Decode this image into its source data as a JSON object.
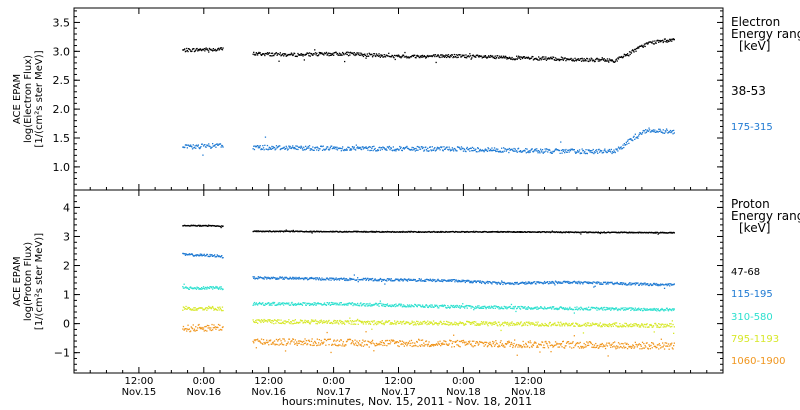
{
  "chart_data": [
    {
      "type": "scatter",
      "panel": "electron",
      "ylabel": [
        "ACE EPAM",
        "log(Electron Flux)",
        "[1/(cm²s ster MeV)]"
      ],
      "ylim": [
        0.6,
        3.75
      ],
      "yticks": [
        1.0,
        1.5,
        2.0,
        2.5,
        3.0,
        3.5
      ],
      "ytick_labels": [
        "1.0",
        "1.5",
        "2.0",
        "2.5",
        "3.0",
        "3.5"
      ],
      "legend_title": [
        "Electron",
        "Energy ranges",
        "[keV]"
      ],
      "segments": [
        [
          20,
          27.5
        ],
        [
          33,
          111
        ]
      ],
      "series": [
        {
          "name": "38-53",
          "color": "#000000",
          "noise": 0.03,
          "knots_x": [
            20,
            27,
            33,
            40,
            50,
            60,
            70,
            80,
            90,
            100,
            104,
            106,
            111
          ],
          "knots_y": [
            3.03,
            3.05,
            2.97,
            2.95,
            2.97,
            2.92,
            2.93,
            2.9,
            2.88,
            2.85,
            3.05,
            3.15,
            3.22
          ]
        },
        {
          "name": "175-315",
          "color": "#1f7ad3",
          "noise": 0.04,
          "knots_x": [
            20,
            27,
            33,
            50,
            70,
            90,
            100,
            104,
            106,
            111
          ],
          "knots_y": [
            1.35,
            1.38,
            1.35,
            1.33,
            1.32,
            1.28,
            1.28,
            1.55,
            1.65,
            1.62
          ]
        }
      ]
    },
    {
      "type": "scatter",
      "panel": "proton",
      "ylabel": [
        "ACE EPAM",
        "log(Proton Flux)",
        "[1/(cm²s ster MeV)]"
      ],
      "ylim": [
        -1.7,
        4.6
      ],
      "yticks": [
        -1,
        0,
        1,
        2,
        3,
        4
      ],
      "ytick_labels": [
        "−1",
        "0",
        "1",
        "2",
        "3",
        "4"
      ],
      "legend_title": [
        "Proton",
        "Energy ranges",
        "[keV]"
      ],
      "segments": [
        [
          20,
          27.5
        ],
        [
          33,
          111
        ]
      ],
      "series": [
        {
          "name": "47-68",
          "color": "#000000",
          "noise": 0.015,
          "knots_x": [
            20,
            27,
            33,
            60,
            80,
            111
          ],
          "knots_y": [
            3.4,
            3.38,
            3.2,
            3.18,
            3.18,
            3.15
          ]
        },
        {
          "name": "115-195",
          "color": "#1f7ad3",
          "noise": 0.04,
          "knots_x": [
            20,
            27,
            33,
            50,
            70,
            80,
            90,
            111
          ],
          "knots_y": [
            2.4,
            2.35,
            1.6,
            1.55,
            1.5,
            1.4,
            1.45,
            1.35
          ]
        },
        {
          "name": "310-580",
          "color": "#2ee0cf",
          "noise": 0.05,
          "knots_x": [
            20,
            27,
            33,
            50,
            70,
            90,
            111
          ],
          "knots_y": [
            1.25,
            1.25,
            0.7,
            0.7,
            0.6,
            0.55,
            0.5
          ]
        },
        {
          "name": "795-1193",
          "color": "#d7e82a",
          "noise": 0.07,
          "knots_x": [
            20,
            27,
            33,
            60,
            90,
            111
          ],
          "knots_y": [
            0.55,
            0.55,
            0.1,
            0.05,
            0.0,
            -0.05
          ]
        },
        {
          "name": "1060-1900",
          "color": "#f0961e",
          "noise": 0.12,
          "knots_x": [
            20,
            27,
            33,
            60,
            90,
            111
          ],
          "knots_y": [
            -0.15,
            -0.1,
            -0.6,
            -0.65,
            -0.7,
            -0.75
          ]
        }
      ]
    }
  ],
  "x_axis": {
    "xlim": [
      0,
      120
    ],
    "xlabel": "hours:minutes, Nov. 15, 2011 - Nov. 18, 2011",
    "ticks": [
      {
        "x": 12,
        "time": "12:00",
        "date": "Nov.15"
      },
      {
        "x": 24,
        "time": "0:00",
        "date": "Nov.16"
      },
      {
        "x": 36,
        "time": "12:00",
        "date": "Nov.16"
      },
      {
        "x": 48,
        "time": "0:00",
        "date": "Nov.17"
      },
      {
        "x": 60,
        "time": "12:00",
        "date": "Nov.17"
      },
      {
        "x": 72,
        "time": "0:00",
        "date": "Nov.18"
      },
      {
        "x": 84,
        "time": "12:00",
        "date": "Nov.18"
      }
    ]
  }
}
